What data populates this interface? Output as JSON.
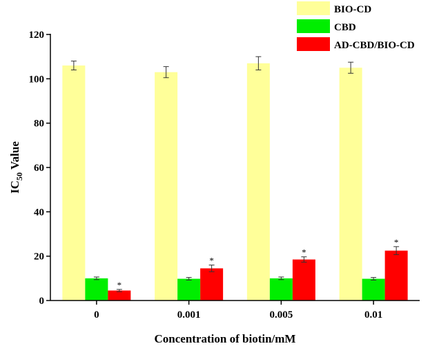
{
  "chart_data": {
    "type": "bar",
    "title": "",
    "xlabel": "Concentration of biotin/mM",
    "ylabel_main": "IC",
    "ylabel_sub": "50",
    "ylabel_rest": " Value",
    "ylim": [
      0,
      120
    ],
    "yticks": [
      0,
      20,
      40,
      60,
      80,
      100,
      120
    ],
    "categories": [
      "0",
      "0.001",
      "0.005",
      "0.01"
    ],
    "series": [
      {
        "name": "BIO-CD",
        "color": "#ffff99",
        "values": [
          106,
          103,
          107,
          105
        ],
        "errors": [
          2.0,
          2.5,
          3.0,
          2.5
        ],
        "marks": [
          "",
          "",
          "",
          ""
        ]
      },
      {
        "name": "CBD",
        "color": "#00ee00",
        "values": [
          10,
          9.8,
          10,
          9.8
        ],
        "errors": [
          0.6,
          0.6,
          0.6,
          0.6
        ],
        "marks": [
          "",
          "",
          "",
          ""
        ]
      },
      {
        "name": "AD-CBD/BIO-CD",
        "color": "#ff0000",
        "values": [
          4.5,
          14.5,
          18.5,
          22.5
        ],
        "errors": [
          0.5,
          1.5,
          1.2,
          1.8
        ],
        "marks": [
          "*",
          "*",
          "*",
          "*"
        ]
      }
    ],
    "legend_position": "top-right"
  }
}
